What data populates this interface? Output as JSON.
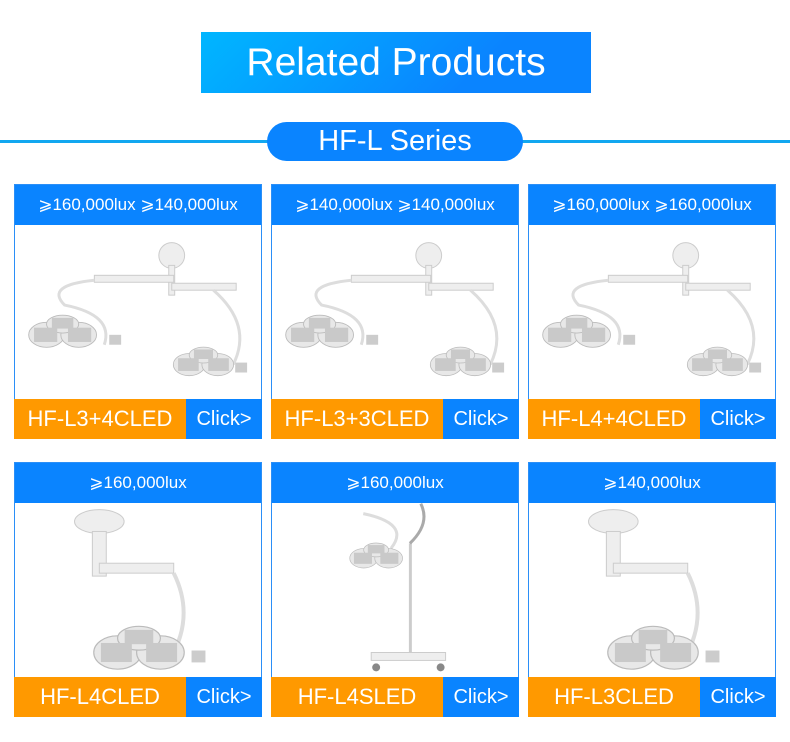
{
  "title": "Related Products",
  "series": "HF-L Series",
  "colors": {
    "blue": "#0a84ff",
    "orange": "#ff9900"
  },
  "products": [
    {
      "lux": "⩾160,000lux ⩾140,000lux",
      "name": "HF-L3+4CLED",
      "cta": "Click>",
      "image": "double-arm-ceiling-lamp"
    },
    {
      "lux": "⩾140,000lux ⩾140,000lux",
      "name": "HF-L3+3CLED",
      "cta": "Click>",
      "image": "double-arm-ceiling-lamp"
    },
    {
      "lux": "⩾160,000lux ⩾160,000lux",
      "name": "HF-L4+4CLED",
      "cta": "Click>",
      "image": "double-arm-ceiling-lamp"
    },
    {
      "lux": "⩾160,000lux",
      "name": "HF-L4CLED",
      "cta": "Click>",
      "image": "single-arm-ceiling-lamp"
    },
    {
      "lux": "⩾160,000lux",
      "name": "HF-L4SLED",
      "cta": "Click>",
      "image": "mobile-stand-lamp"
    },
    {
      "lux": "⩾140,000lux",
      "name": "HF-L3CLED",
      "cta": "Click>",
      "image": "single-arm-ceiling-lamp"
    }
  ]
}
